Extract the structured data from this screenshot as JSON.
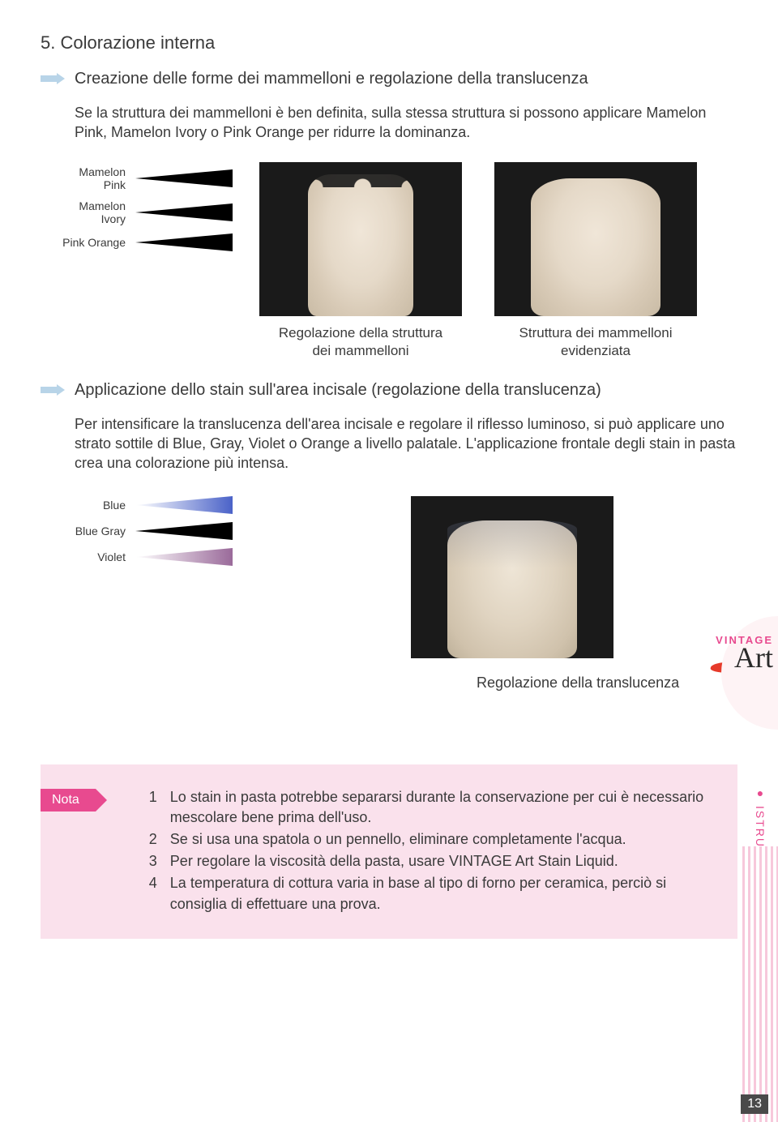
{
  "section": {
    "title": "5. Colorazione interna",
    "sub1_title": "Creazione delle forme dei mammelloni e regolazione della translucenza",
    "sub1_body": "Se la struttura dei mammelloni è ben definita, sulla stessa struttura si possono applicare Mamelon Pink, Mamelon Ivory o Pink Orange per ridurre la dominanza.",
    "sub2_title": "Applicazione dello stain sull'area incisale (regolazione della translucenza)",
    "sub2_body": "Per intensificare la translucenza dell'area incisale e regolare il riflesso luminoso, si può applicare uno strato sottile di Blue, Gray, Violet o Orange a livello palatale. L'applicazione frontale degli stain in pasta crea una colorazione più intensa."
  },
  "swatches1": [
    {
      "label": "Mamelon Pink",
      "g1": "#ffffff",
      "g2": "#f6b08a"
    },
    {
      "label": "Mamelon Ivory",
      "g1": "#ffffff",
      "g2": "#f3c99a"
    },
    {
      "label": "Pink Orange",
      "g1": "#ffffff",
      "g2": "#f09a5f"
    }
  ],
  "swatches2": [
    {
      "label": "Blue",
      "g1": "#ffffff",
      "g2": "#4a62c8"
    },
    {
      "label": "Blue Gray",
      "g1": "#ffffff",
      "g2": "#3a3f4d"
    },
    {
      "label": "Violet",
      "g1": "#ffffff",
      "g2": "#9a6a9a"
    }
  ],
  "captions": {
    "photo1": "Regolazione della struttura\ndei mammelloni",
    "photo2": "Struttura dei mammelloni\nevidenziata",
    "photo3": "Regolazione della translucenza"
  },
  "nota": {
    "tag": "Nota",
    "items": [
      "Lo stain in pasta potrebbe separarsi durante la conservazione per cui è necessario mescolare bene prima dell'uso.",
      "Se si usa una spatola o un pennello, eliminare completamente l'acqua.",
      "Per regolare la viscosità della pasta, usare VINTAGE Art Stain Liquid.",
      "La temperatura di cottura varia in base al tipo di forno per ceramica, perciò si consiglia di effettuare una prova."
    ]
  },
  "side": {
    "vintage": "VINTAGE",
    "art": "Art",
    "vertical": "ISTRUZIONI PER L'USO"
  },
  "page_number": "13"
}
